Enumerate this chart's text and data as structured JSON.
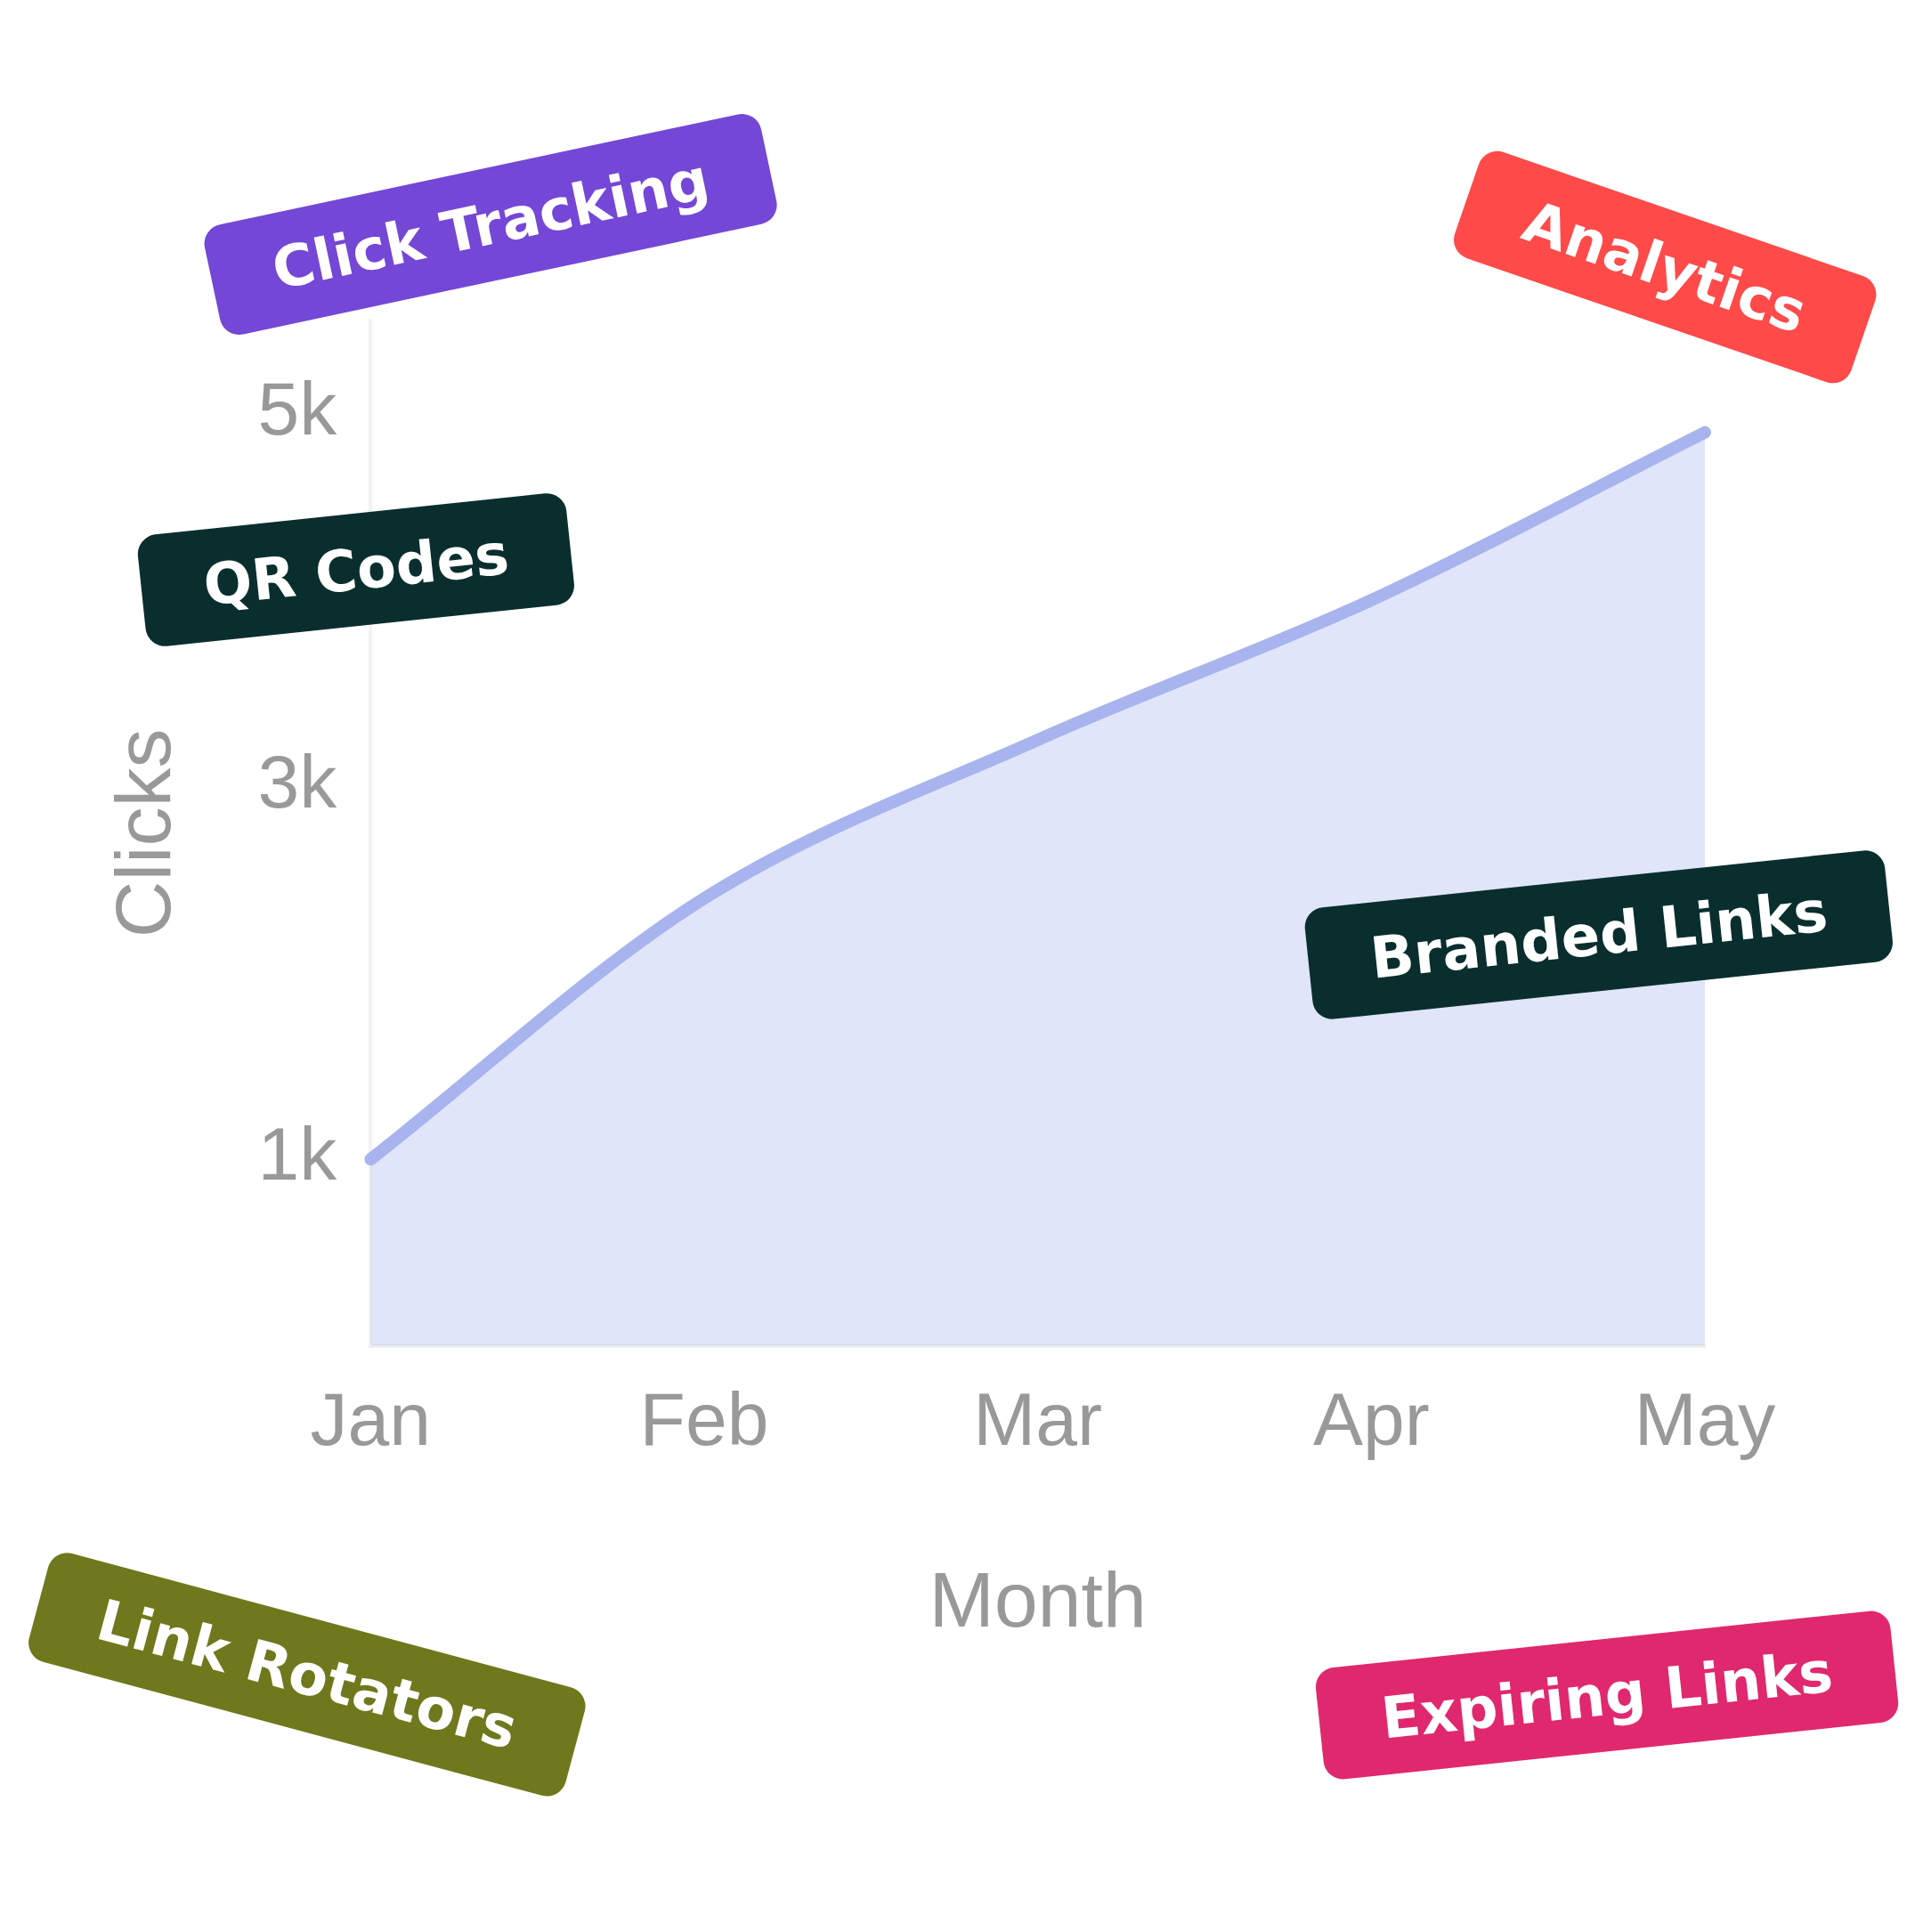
{
  "chart_data": {
    "type": "area",
    "xlabel": "Month",
    "ylabel": "Clicks",
    "categories": [
      "Jan",
      "Feb",
      "Mar",
      "Apr",
      "May"
    ],
    "series": [
      {
        "color": "#a8b4ee",
        "values": [
          1000,
          2400,
          3250,
          4000,
          4900
        ]
      }
    ],
    "ylim": [
      0,
      5500
    ],
    "yticks": [
      {
        "value": 1000,
        "label": "1k"
      },
      {
        "value": 3000,
        "label": "3k"
      },
      {
        "value": 5000,
        "label": "5k"
      }
    ],
    "grid": false,
    "legend": false,
    "marker": "none",
    "annotations": [
      "Click Tracking",
      "Analytics",
      "QR Codes",
      "Branded Links",
      "Link Rotators",
      "Expiring Links"
    ]
  }
}
